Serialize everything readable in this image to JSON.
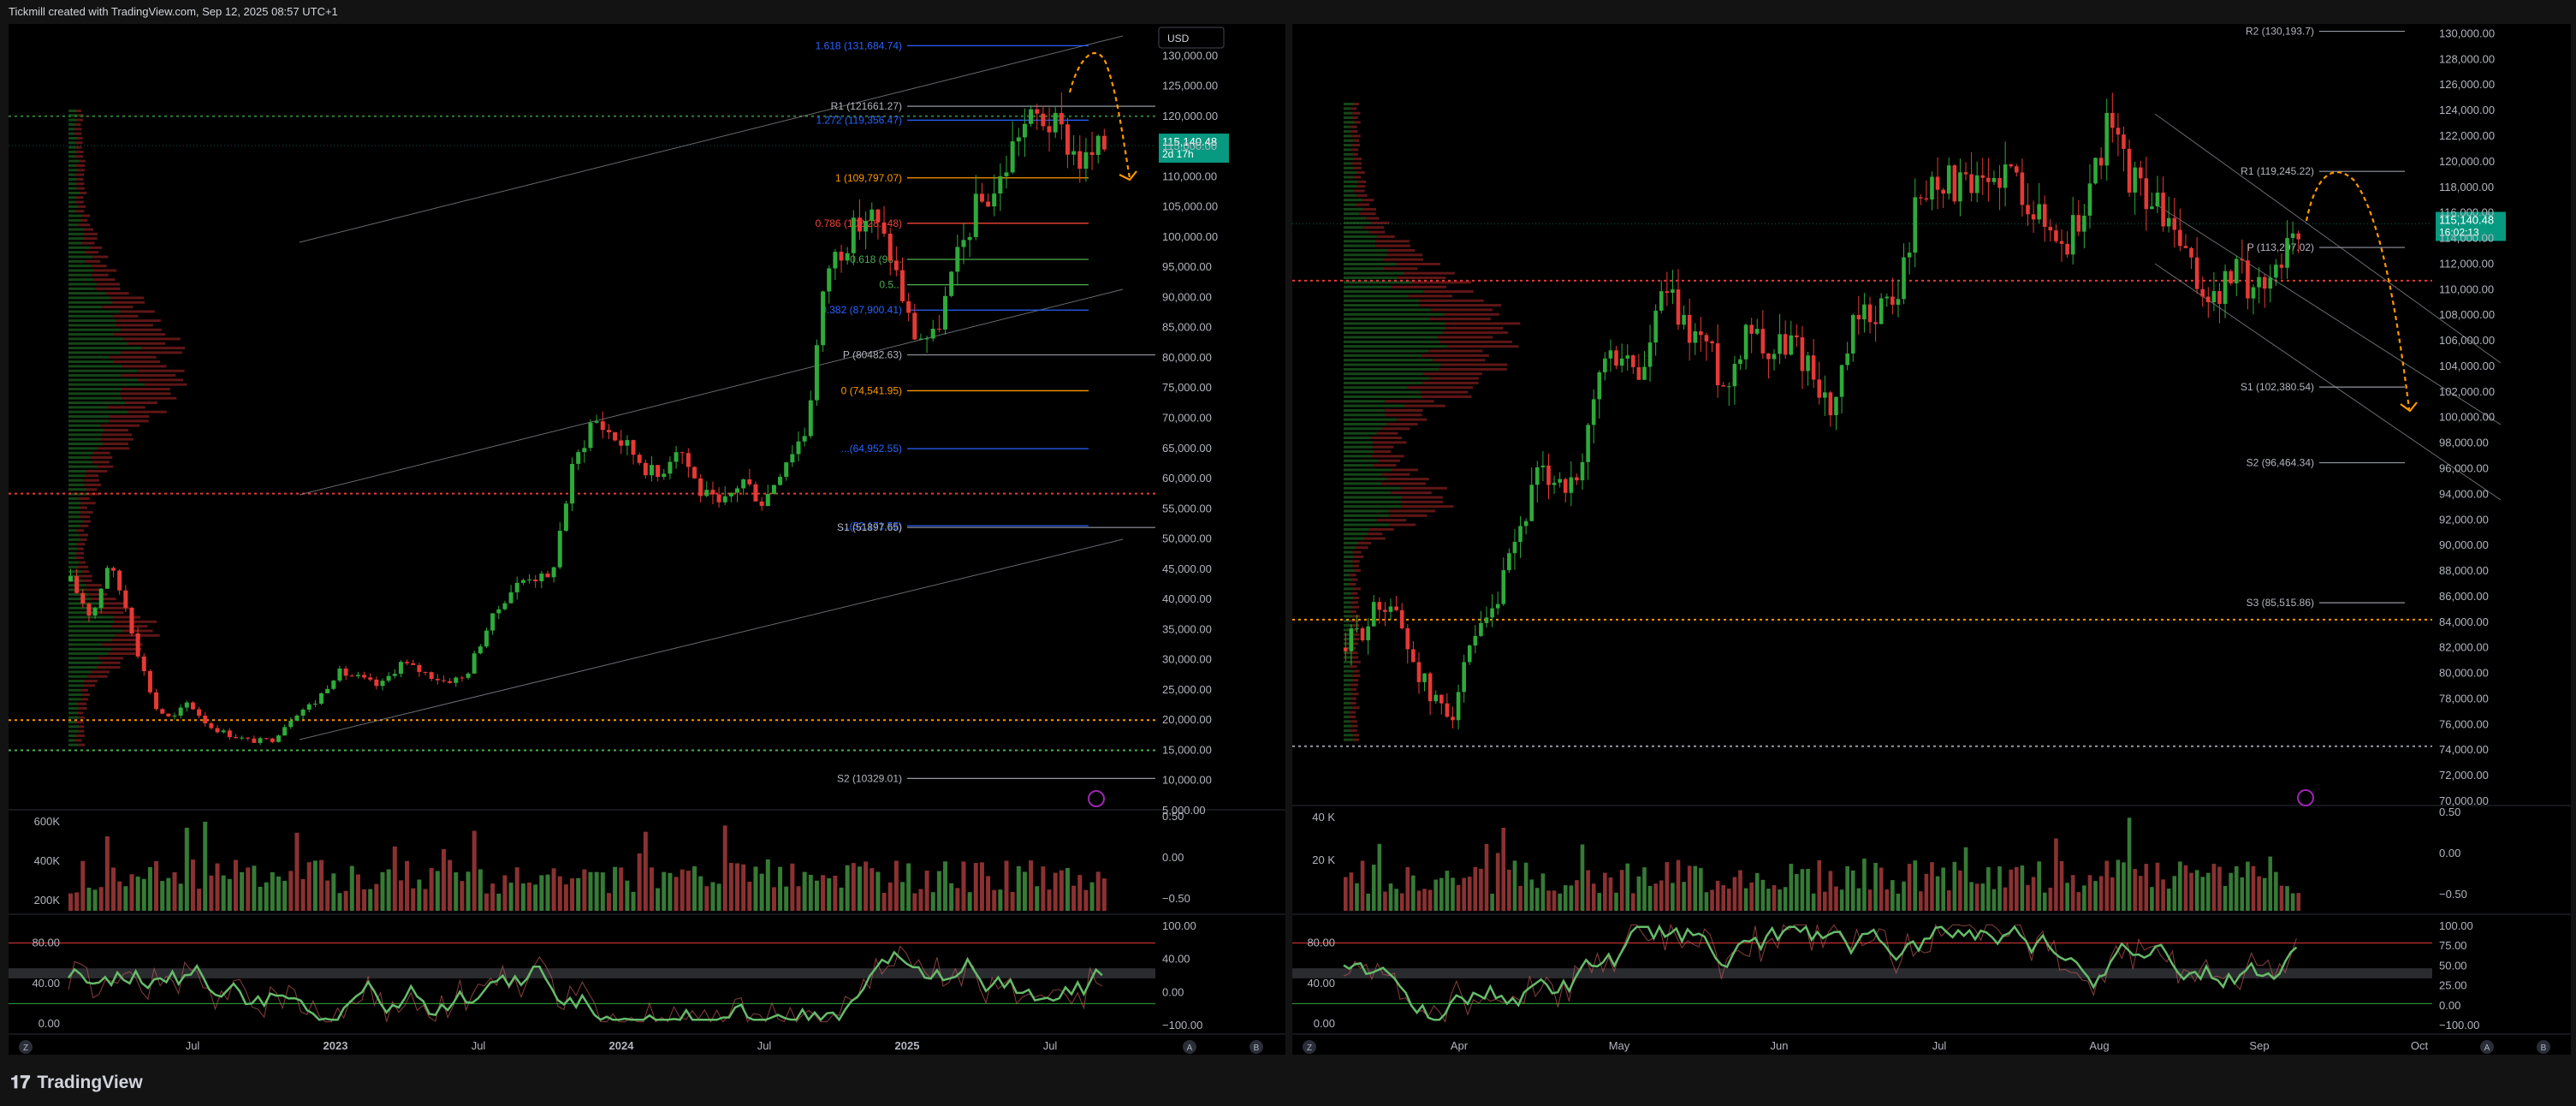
{
  "header": {
    "title": "Tickmill created with TradingView.com, Sep 12, 2025 08:57 UTC+1"
  },
  "footer": {
    "brand": "TradingView"
  },
  "colors": {
    "up": "#2eaa3a",
    "down": "#e53935",
    "fib_blue": "#2962ff",
    "fib_orange": "#ff9800",
    "fib_red": "#f44336",
    "fib_green": "#4caf50",
    "price_tag": "#089981",
    "background": "#000000"
  },
  "chart_data": [
    {
      "type": "candlestick",
      "instrument_currency": "USD",
      "last_price": "115,140.48",
      "countdown": "2d 17h",
      "y_ticks": [
        "130,000.00",
        "125,000.00",
        "120,000.00",
        "115,000.00",
        "110,000.00",
        "105,000.00",
        "100,000.00",
        "95,000.00",
        "90,000.00",
        "85,000.00",
        "80,000.00",
        "75,000.00",
        "70,000.00",
        "65,000.00",
        "60,000.00",
        "55,000.00",
        "50,000.00",
        "45,000.00",
        "40,000.00",
        "35,000.00",
        "30,000.00",
        "25,000.00",
        "20,000.00",
        "15,000.00",
        "10,000.00",
        "5,000.00"
      ],
      "x_ticks": [
        "Jul",
        "2023",
        "Jul",
        "2024",
        "Jul",
        "2025",
        "Jul"
      ],
      "fib_levels": [
        {
          "label": "1.618 (131,684.74)",
          "value": 131685,
          "color": "#2962ff"
        },
        {
          "label": "1.272 (119,356.47)",
          "value": 119356,
          "color": "#2962ff"
        },
        {
          "label": "1 (109,797.07)",
          "value": 109797,
          "color": "#ff9800"
        },
        {
          "label": "0.786 (102,28...48)",
          "value": 102280,
          "color": "#f44336"
        },
        {
          "label": "0.618 (96...",
          "value": 96300,
          "color": "#4caf50"
        },
        {
          "label": "0.5...",
          "value": 92100,
          "color": "#4caf50"
        },
        {
          "label": "0.382 (87,900.41)",
          "value": 87900,
          "color": "#2962ff"
        },
        {
          "label": "0 (74,541.95)",
          "value": 74542,
          "color": "#ff9800"
        },
        {
          "label": "...(64,952.55)",
          "value": 64953,
          "color": "#2962ff"
        },
        {
          "label": "...(52,171.55)",
          "value": 52172,
          "color": "#2962ff"
        }
      ],
      "pivots": [
        {
          "label": "R1 (121661.27)",
          "value": 121661
        },
        {
          "label": "P (80482.63)",
          "value": 80483
        },
        {
          "label": "S1 (51897.65)",
          "value": 51898
        },
        {
          "label": "S2 (10329.01)",
          "value": 10329
        }
      ],
      "close_path": [
        [
          0,
          43000
        ],
        [
          0.02,
          37000
        ],
        [
          0.035,
          46000
        ],
        [
          0.05,
          40000
        ],
        [
          0.065,
          30000
        ],
        [
          0.08,
          22000
        ],
        [
          0.095,
          20000
        ],
        [
          0.11,
          23000
        ],
        [
          0.13,
          19000
        ],
        [
          0.15,
          17500
        ],
        [
          0.17,
          16500
        ],
        [
          0.19,
          16800
        ],
        [
          0.21,
          21000
        ],
        [
          0.23,
          23000
        ],
        [
          0.25,
          28000
        ],
        [
          0.27,
          27000
        ],
        [
          0.29,
          25500
        ],
        [
          0.31,
          29500
        ],
        [
          0.33,
          28000
        ],
        [
          0.35,
          26500
        ],
        [
          0.37,
          27000
        ],
        [
          0.39,
          35000
        ],
        [
          0.41,
          41000
        ],
        [
          0.43,
          44000
        ],
        [
          0.45,
          43000
        ],
        [
          0.47,
          61000
        ],
        [
          0.49,
          70000
        ],
        [
          0.51,
          67000
        ],
        [
          0.53,
          64000
        ],
        [
          0.55,
          60000
        ],
        [
          0.57,
          66000
        ],
        [
          0.59,
          58000
        ],
        [
          0.61,
          55000
        ],
        [
          0.63,
          60000
        ],
        [
          0.65,
          56000
        ],
        [
          0.67,
          63000
        ],
        [
          0.69,
          68000
        ],
        [
          0.71,
          95000
        ],
        [
          0.73,
          100000
        ],
        [
          0.75,
          104000
        ],
        [
          0.77,
          97000
        ],
        [
          0.79,
          84000
        ],
        [
          0.81,
          83000
        ],
        [
          0.83,
          95000
        ],
        [
          0.85,
          105000
        ],
        [
          0.87,
          108000
        ],
        [
          0.89,
          118000
        ],
        [
          0.91,
          120000
        ],
        [
          0.93,
          117000
        ],
        [
          0.95,
          112000
        ],
        [
          0.97,
          115140
        ]
      ],
      "volume_ticks": [
        "600K",
        "400K",
        "200K"
      ],
      "volume_right_ticks": [
        "0.50",
        "0.00",
        "−0.50"
      ],
      "osc_ticks": [
        "80.00",
        "40.00",
        "0.00"
      ],
      "osc_right_ticks": [
        "100.00",
        "40.00",
        "0.00",
        "−100.00"
      ],
      "badges": [
        "Z",
        "A",
        "B"
      ]
    },
    {
      "type": "candlestick",
      "last_price": "115,140.48",
      "countdown": "16:02:13",
      "y_ticks": [
        "130,000.00",
        "128,000.00",
        "126,000.00",
        "124,000.00",
        "122,000.00",
        "120,000.00",
        "118,000.00",
        "116,000.00",
        "114,000.00",
        "112,000.00",
        "110,000.00",
        "108,000.00",
        "106,000.00",
        "104,000.00",
        "102,000.00",
        "100,000.00",
        "98,000.00",
        "96,000.00",
        "94,000.00",
        "92,000.00",
        "90,000.00",
        "88,000.00",
        "86,000.00",
        "84,000.00",
        "82,000.00",
        "80,000.00",
        "78,000.00",
        "76,000.00",
        "74,000.00",
        "72,000.00",
        "70,000.00"
      ],
      "x_ticks": [
        "Apr",
        "May",
        "Jun",
        "Jul",
        "Aug",
        "Sep",
        "Oct"
      ],
      "pivots": [
        {
          "label": "R2 (130,193.7)",
          "value": 130194
        },
        {
          "label": "R1 (119,245.22)",
          "value": 119245
        },
        {
          "label": "P (113,297.02)",
          "value": 113297
        },
        {
          "label": "S1 (102,380.54)",
          "value": 102381
        },
        {
          "label": "S2 (96,464.34)",
          "value": 96464
        },
        {
          "label": "S3 (85,515.86)",
          "value": 85516
        }
      ],
      "close_path": [
        [
          0,
          82000
        ],
        [
          0.02,
          84000
        ],
        [
          0.04,
          86000
        ],
        [
          0.06,
          82000
        ],
        [
          0.08,
          78000
        ],
        [
          0.1,
          77000
        ],
        [
          0.12,
          82000
        ],
        [
          0.14,
          84500
        ],
        [
          0.16,
          90000
        ],
        [
          0.18,
          95000
        ],
        [
          0.2,
          95500
        ],
        [
          0.22,
          94000
        ],
        [
          0.24,
          104000
        ],
        [
          0.26,
          105000
        ],
        [
          0.28,
          103000
        ],
        [
          0.3,
          110000
        ],
        [
          0.32,
          107000
        ],
        [
          0.34,
          106000
        ],
        [
          0.36,
          102000
        ],
        [
          0.38,
          108000
        ],
        [
          0.4,
          105000
        ],
        [
          0.42,
          106000
        ],
        [
          0.44,
          104000
        ],
        [
          0.46,
          100000
        ],
        [
          0.48,
          107000
        ],
        [
          0.5,
          108500
        ],
        [
          0.52,
          109000
        ],
        [
          0.54,
          117000
        ],
        [
          0.56,
          119000
        ],
        [
          0.58,
          118000
        ],
        [
          0.6,
          117500
        ],
        [
          0.62,
          119500
        ],
        [
          0.64,
          118000
        ],
        [
          0.66,
          115000
        ],
        [
          0.68,
          113500
        ],
        [
          0.7,
          117000
        ],
        [
          0.72,
          123000
        ],
        [
          0.74,
          119000
        ],
        [
          0.76,
          117000
        ],
        [
          0.78,
          115000
        ],
        [
          0.8,
          111000
        ],
        [
          0.82,
          109000
        ],
        [
          0.84,
          111500
        ],
        [
          0.86,
          110000
        ],
        [
          0.88,
          112000
        ],
        [
          0.9,
          115140
        ]
      ],
      "volume_ticks": [
        "40 K",
        "20 K"
      ],
      "volume_right_ticks": [
        "0.50",
        "0.00",
        "−0.50"
      ],
      "osc_ticks": [
        "80.00",
        "40.00",
        "0.00"
      ],
      "osc_right_ticks": [
        "100.00",
        "75.00",
        "50.00",
        "25.00",
        "0.00",
        "−100.00"
      ],
      "badges": [
        "Z",
        "A",
        "B"
      ]
    }
  ]
}
